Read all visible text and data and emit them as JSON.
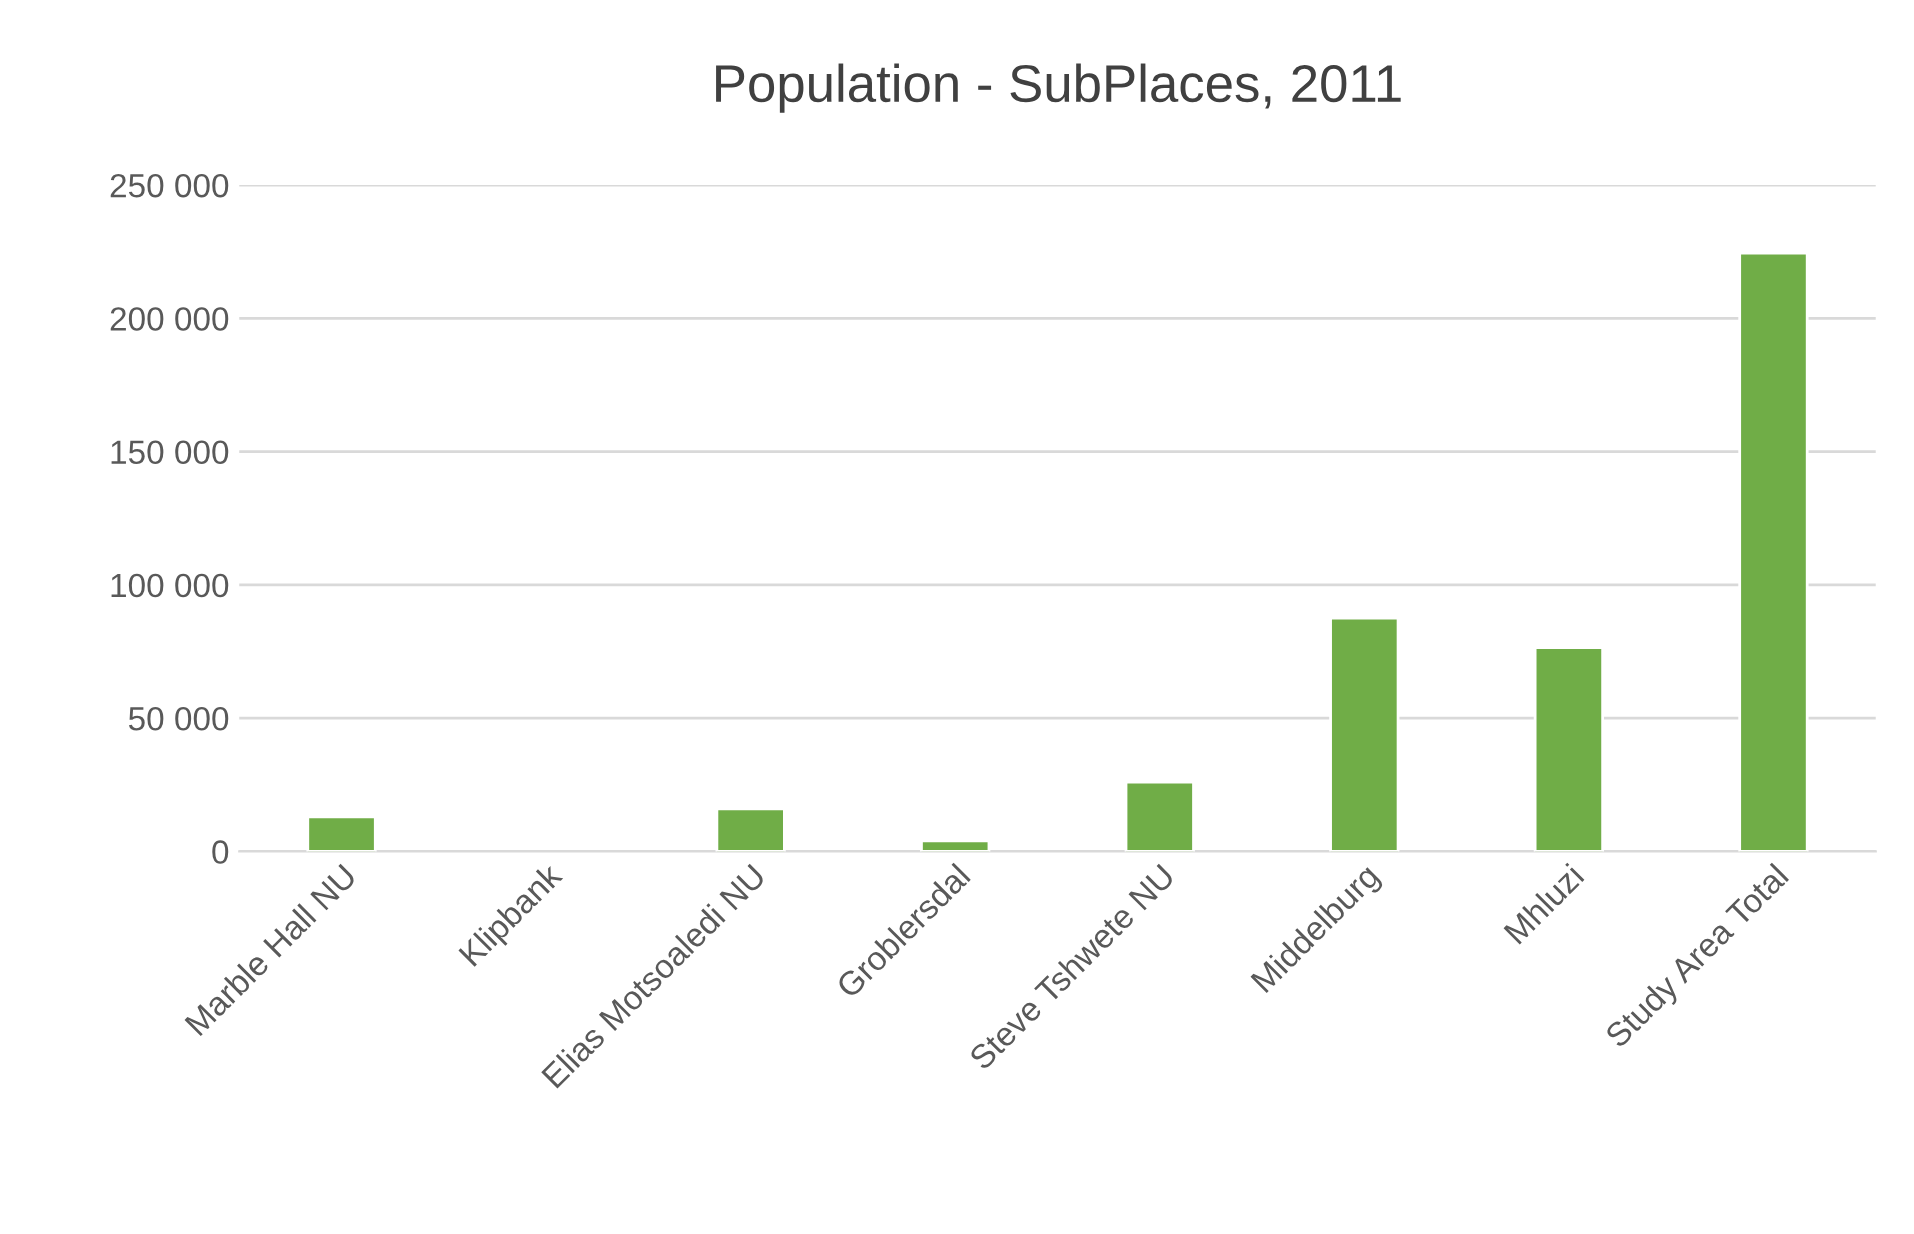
{
  "chart_data": {
    "type": "bar",
    "title": "Population - SubPlaces, 2011",
    "categories": [
      "Marble Hall NU",
      "Klipbank",
      "Elias Motsoaledi NU",
      "Groblersdal",
      "Steve Tshwete NU",
      "Middelburg",
      "Mhluzi",
      "Study Area Total"
    ],
    "values": [
      13000,
      null,
      16000,
      4000,
      26000,
      87500,
      76500,
      224500
    ],
    "color": "#70ad47",
    "ylim": [
      0,
      250000
    ],
    "yticks": [
      {
        "value": 0,
        "label": "0"
      },
      {
        "value": 50000,
        "label": "50 000"
      },
      {
        "value": 100000,
        "label": "100 000"
      },
      {
        "value": 150000,
        "label": "150 000"
      },
      {
        "value": 200000,
        "label": "200 000"
      },
      {
        "value": 250000,
        "label": "250 000"
      }
    ],
    "grid": "y",
    "legend": false
  }
}
